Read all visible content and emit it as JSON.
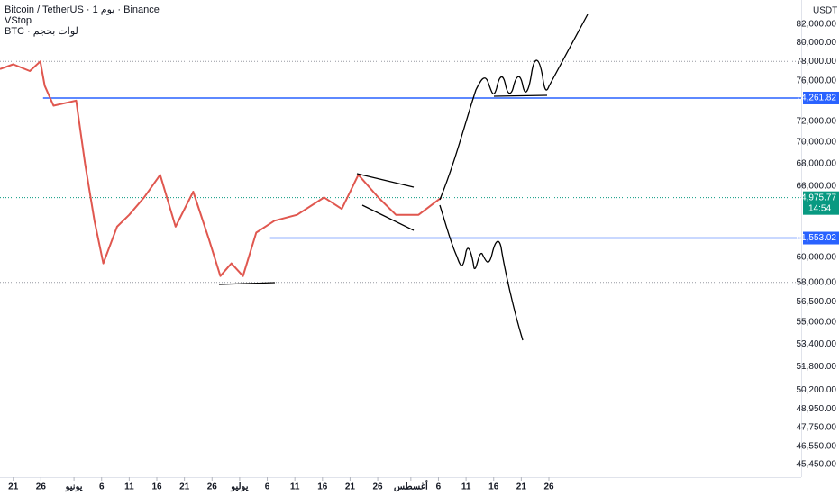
{
  "chart_data": {
    "type": "line",
    "title": "Bitcoin / TetherUS · 1 يوم · Binance",
    "indicators": [
      "VStop",
      "BTC · لوات بحجم"
    ],
    "y_unit": "USDT",
    "yscale": "log",
    "ylim": [
      44680,
      84700
    ],
    "yticks": [
      {
        "value": 82000,
        "label": "82,000.00"
      },
      {
        "value": 80000,
        "label": "80,000.00"
      },
      {
        "value": 78000,
        "label": "78,000.00"
      },
      {
        "value": 76000,
        "label": "76,000.00"
      },
      {
        "value": 72000,
        "label": "72,000.00"
      },
      {
        "value": 70000,
        "label": "70,000.00"
      },
      {
        "value": 68000,
        "label": "68,000.00"
      },
      {
        "value": 66000,
        "label": "66,000.00"
      },
      {
        "value": 60000,
        "label": "60,000.00"
      },
      {
        "value": 58000,
        "label": "58,000.00"
      },
      {
        "value": 56500,
        "label": "56,500.00"
      },
      {
        "value": 55000,
        "label": "55,000.00"
      },
      {
        "value": 53400,
        "label": "53,400.00"
      },
      {
        "value": 51800,
        "label": "51,800.00"
      },
      {
        "value": 50200,
        "label": "50,200.00"
      },
      {
        "value": 48950,
        "label": "48,950.00"
      },
      {
        "value": 47750,
        "label": "47,750.00"
      },
      {
        "value": 46550,
        "label": "46,550.00"
      },
      {
        "value": 45450,
        "label": "45,450.00"
      }
    ],
    "xlim": [
      -2.4,
      142.7
    ],
    "xticks": [
      {
        "value": 0,
        "label": "21"
      },
      {
        "value": 5,
        "label": "26"
      },
      {
        "value": 11,
        "label": "يونيو"
      },
      {
        "value": 16,
        "label": "6"
      },
      {
        "value": 21,
        "label": "11"
      },
      {
        "value": 26,
        "label": "16"
      },
      {
        "value": 31,
        "label": "21"
      },
      {
        "value": 36,
        "label": "26"
      },
      {
        "value": 41,
        "label": "يوليو"
      },
      {
        "value": 46,
        "label": "6"
      },
      {
        "value": 51,
        "label": "11"
      },
      {
        "value": 56,
        "label": "16"
      },
      {
        "value": 61,
        "label": "21"
      },
      {
        "value": 66,
        "label": "26"
      },
      {
        "value": 72,
        "label": "أغسطس"
      },
      {
        "value": 77,
        "label": "6"
      },
      {
        "value": 82,
        "label": "11"
      },
      {
        "value": 87,
        "label": "16"
      },
      {
        "value": 92,
        "label": "21"
      },
      {
        "value": 97,
        "label": "26"
      }
    ],
    "levels": [
      {
        "value": 74261.82,
        "label": "74,261.82",
        "color": "#2962ff",
        "from": 5.4
      },
      {
        "value": 61553.02,
        "label": "61,553.02",
        "color": "#2962ff",
        "from": 46.5
      }
    ],
    "dotted_levels": [
      78000,
      58000
    ],
    "last_price": {
      "value": 64975.77,
      "label": "64,975.77",
      "countdown": "14:54",
      "color": "#089981"
    },
    "series": [
      {
        "name": "BTCUSDT",
        "color": "#e0574f",
        "x": [
          -2.4,
          0,
          3,
          4.9,
          5.7,
          7.3,
          9.7,
          11.4,
          13,
          14.7,
          16.3,
          18.8,
          21,
          23.7,
          26.6,
          29.4,
          32.6,
          35.4,
          37.5,
          39.5,
          41.6,
          44,
          47.3,
          51.4,
          56.3,
          59.5,
          62.5,
          66.1,
          69.3,
          73.4,
          77.5
        ],
        "values": [
          77200,
          77700,
          77000,
          78000,
          75500,
          73500,
          73800,
          74000,
          68000,
          63000,
          59500,
          62500,
          63500,
          65000,
          67000,
          62500,
          65500,
          61500,
          58500,
          59500,
          58500,
          62000,
          63000,
          63500,
          65000,
          64000,
          67000,
          65000,
          63500,
          63500,
          64975.77
        ]
      }
    ]
  }
}
